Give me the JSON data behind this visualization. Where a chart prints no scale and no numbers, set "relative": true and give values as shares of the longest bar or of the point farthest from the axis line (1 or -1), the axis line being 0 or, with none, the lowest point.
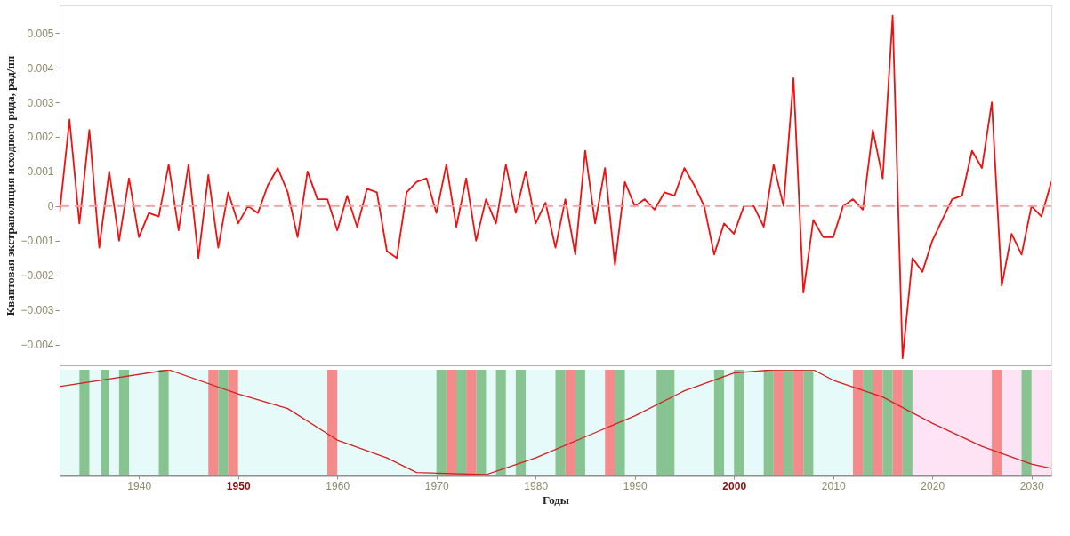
{
  "chart_data": [
    {
      "type": "line",
      "ylabel": "Квантовая экстраполяция исходного ряда, рад/пп",
      "x": [
        1932,
        1933,
        1934,
        1935,
        1936,
        1937,
        1938,
        1939,
        1940,
        1941,
        1942,
        1943,
        1944,
        1945,
        1946,
        1947,
        1948,
        1949,
        1950,
        1951,
        1952,
        1953,
        1954,
        1955,
        1956,
        1957,
        1958,
        1959,
        1960,
        1961,
        1962,
        1963,
        1964,
        1965,
        1966,
        1967,
        1968,
        1969,
        1970,
        1971,
        1972,
        1973,
        1974,
        1975,
        1976,
        1977,
        1978,
        1979,
        1980,
        1981,
        1982,
        1983,
        1984,
        1985,
        1986,
        1987,
        1988,
        1989,
        1990,
        1991,
        1992,
        1993,
        1994,
        1995,
        1996,
        1997,
        1998,
        1999,
        2000,
        2001,
        2002,
        2003,
        2004,
        2005,
        2006,
        2007,
        2008,
        2009,
        2010,
        2011,
        2012,
        2013,
        2014,
        2015,
        2016,
        2017,
        2018,
        2019,
        2020,
        2021,
        2022,
        2023,
        2024,
        2025,
        2026,
        2027,
        2028,
        2029,
        2030,
        2031,
        2032
      ],
      "series": [
        {
          "color": "#f01010",
          "values": [
            -0.0002,
            0.0025,
            -0.0005,
            0.0022,
            -0.0012,
            0.001,
            -0.001,
            0.0008,
            -0.0009,
            -0.0002,
            -0.0003,
            0.0012,
            -0.0007,
            0.0012,
            -0.0015,
            0.0009,
            -0.0012,
            0.0004,
            -0.0005,
            0.0,
            -0.0002,
            0.0006,
            0.0011,
            0.0004,
            -0.0009,
            0.001,
            0.0002,
            0.0002,
            -0.0007,
            0.0003,
            -0.0006,
            0.0005,
            0.0004,
            -0.0013,
            -0.0015,
            0.0004,
            0.0007,
            0.0008,
            -0.0002,
            0.0012,
            -0.0006,
            0.0008,
            -0.001,
            0.0002,
            -0.0005,
            0.0012,
            -0.0002,
            0.001,
            -0.0005,
            0.0001,
            -0.0012,
            0.0002,
            -0.0014,
            0.0016,
            -0.0005,
            0.0011,
            -0.0017,
            0.0007,
            0.0,
            0.0002,
            -0.0001,
            0.0004,
            0.0003,
            0.0011,
            0.0006,
            0.0,
            -0.0014,
            -0.0005,
            -0.0008,
            0.0,
            0.0,
            -0.0006,
            0.0012,
            0.0,
            0.0037,
            -0.0025,
            -0.0004,
            -0.0009,
            -0.0009,
            0.0,
            0.0002,
            -0.0001,
            0.0022,
            0.0008,
            0.0055,
            -0.0044,
            -0.0015,
            -0.0019,
            -0.001,
            -0.0004,
            0.0002,
            0.0003,
            0.0016,
            0.0011,
            0.003,
            -0.0023,
            -0.0008,
            -0.0014,
            0.0,
            -0.0003,
            0.0007
          ]
        }
      ],
      "xlim": [
        1932,
        2032
      ],
      "ylim": [
        -0.0046,
        0.0058
      ],
      "yticks": [
        -0.004,
        -0.003,
        -0.002,
        -0.001,
        0,
        0.001,
        0.002,
        0.003,
        0.004,
        0.005
      ],
      "ref_lines": [
        {
          "axis": "y",
          "value": 0,
          "color": "#f0a0a0",
          "line_style": "dashed"
        }
      ],
      "tick_labels": "y",
      "grid": false
    },
    {
      "type": "line",
      "relative": true,
      "xlabel": "Годы",
      "series": [
        {
          "color": "#d02020",
          "x": [
            1932,
            1943,
            1950,
            1955,
            1960,
            1965,
            1968,
            1975,
            1980,
            1985,
            1990,
            1995,
            2000,
            2004,
            2008,
            2010,
            2015,
            2020,
            2025,
            2030,
            2032
          ],
          "values": [
            0.84,
            1.0,
            0.77,
            0.63,
            0.33,
            0.16,
            0.02,
            0.0,
            0.16,
            0.36,
            0.56,
            0.8,
            0.97,
            1.0,
            1.0,
            0.9,
            0.74,
            0.49,
            0.27,
            0.1,
            0.06
          ]
        }
      ],
      "bands": [
        {
          "axis": "x",
          "from": 1932,
          "to": 2018,
          "color": "#e6fafa"
        },
        {
          "axis": "x",
          "from": 2018,
          "to": 2032,
          "color": "#fde3f3"
        },
        {
          "axis": "x",
          "from": 1934,
          "to": 1935,
          "color": "#88c492"
        },
        {
          "axis": "x",
          "from": 1936.2,
          "to": 1937,
          "color": "#88c492"
        },
        {
          "axis": "x",
          "from": 1938,
          "to": 1939,
          "color": "#88c492"
        },
        {
          "axis": "x",
          "from": 1942,
          "to": 1943,
          "color": "#88c492"
        },
        {
          "axis": "x",
          "from": 1947,
          "to": 1948,
          "color": "#f48a8a"
        },
        {
          "axis": "x",
          "from": 1948,
          "to": 1949,
          "color": "#88c492"
        },
        {
          "axis": "x",
          "from": 1949,
          "to": 1950,
          "color": "#f48a8a"
        },
        {
          "axis": "x",
          "from": 1959,
          "to": 1960,
          "color": "#f48a8a"
        },
        {
          "axis": "x",
          "from": 1970,
          "to": 1971,
          "color": "#88c492"
        },
        {
          "axis": "x",
          "from": 1971,
          "to": 1972,
          "color": "#f48a8a"
        },
        {
          "axis": "x",
          "from": 1972,
          "to": 1973,
          "color": "#88c492"
        },
        {
          "axis": "x",
          "from": 1973,
          "to": 1974,
          "color": "#f48a8a"
        },
        {
          "axis": "x",
          "from": 1974,
          "to": 1975,
          "color": "#88c492"
        },
        {
          "axis": "x",
          "from": 1976,
          "to": 1977,
          "color": "#88c492"
        },
        {
          "axis": "x",
          "from": 1978,
          "to": 1979,
          "color": "#88c492"
        },
        {
          "axis": "x",
          "from": 1982,
          "to": 1983,
          "color": "#88c492"
        },
        {
          "axis": "x",
          "from": 1983,
          "to": 1984,
          "color": "#f48a8a"
        },
        {
          "axis": "x",
          "from": 1984,
          "to": 1985,
          "color": "#88c492"
        },
        {
          "axis": "x",
          "from": 1987,
          "to": 1988,
          "color": "#f48a8a"
        },
        {
          "axis": "x",
          "from": 1988,
          "to": 1989,
          "color": "#88c492"
        },
        {
          "axis": "x",
          "from": 1992.2,
          "to": 1994,
          "color": "#88c492"
        },
        {
          "axis": "x",
          "from": 1998,
          "to": 1999,
          "color": "#88c492"
        },
        {
          "axis": "x",
          "from": 2000,
          "to": 2001,
          "color": "#88c492"
        },
        {
          "axis": "x",
          "from": 2003,
          "to": 2004,
          "color": "#88c492"
        },
        {
          "axis": "x",
          "from": 2004,
          "to": 2005,
          "color": "#f48a8a"
        },
        {
          "axis": "x",
          "from": 2005,
          "to": 2006,
          "color": "#88c492"
        },
        {
          "axis": "x",
          "from": 2006,
          "to": 2007,
          "color": "#f48a8a"
        },
        {
          "axis": "x",
          "from": 2007,
          "to": 2008,
          "color": "#88c492"
        },
        {
          "axis": "x",
          "from": 2012,
          "to": 2013,
          "color": "#f48a8a"
        },
        {
          "axis": "x",
          "from": 2013,
          "to": 2014,
          "color": "#88c492"
        },
        {
          "axis": "x",
          "from": 2014,
          "to": 2015,
          "color": "#f48a8a"
        },
        {
          "axis": "x",
          "from": 2015,
          "to": 2016,
          "color": "#88c492"
        },
        {
          "axis": "x",
          "from": 2016,
          "to": 2017,
          "color": "#f48a8a"
        },
        {
          "axis": "x",
          "from": 2017,
          "to": 2018,
          "color": "#88c492"
        },
        {
          "axis": "x",
          "from": 2026,
          "to": 2027,
          "color": "#f48a8a"
        },
        {
          "axis": "x",
          "from": 2029,
          "to": 2030,
          "color": "#88c492"
        }
      ],
      "xlim": [
        1932,
        2032
      ],
      "xticks": [
        1940,
        1950,
        1960,
        1970,
        1980,
        1990,
        2000,
        2010,
        2020,
        2030
      ],
      "tick_labels": "x",
      "grid": false
    }
  ]
}
